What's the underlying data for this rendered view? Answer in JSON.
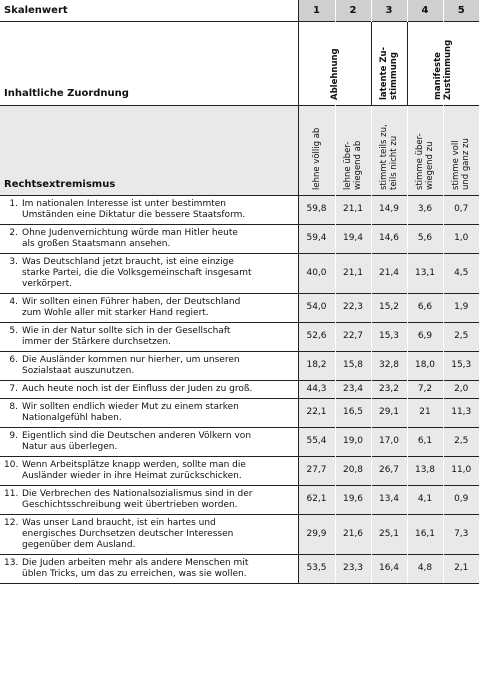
{
  "header": {
    "skalenwert_label": "Skalenwert",
    "scale": [
      "1",
      "2",
      "3",
      "4",
      "5"
    ],
    "inhaltliche_label": "Inhaltliche Zuordnung",
    "groups": [
      {
        "lines": [
          "Ablehnung"
        ]
      },
      {
        "lines": [
          "latente Zu-",
          "stimmung"
        ]
      },
      {
        "lines": [
          "manifeste",
          "Zustimmung"
        ]
      }
    ],
    "section_label": "Rechtsextremismus",
    "columns": [
      {
        "lines": [
          "lehne völlig ab"
        ]
      },
      {
        "lines": [
          "lehne über-",
          "wiegend ab"
        ]
      },
      {
        "lines": [
          "stimmt teils zu,",
          "teils nicht zu"
        ]
      },
      {
        "lines": [
          "stimme über-",
          "wiegend zu"
        ]
      },
      {
        "lines": [
          "stimme voll",
          "und ganz zu"
        ]
      }
    ]
  },
  "rows": [
    {
      "num": "1.",
      "lines": [
        "Im nationalen Interesse ist unter bestimmten",
        "Umständen eine Diktatur die bessere Staatsform."
      ],
      "values": [
        "59,8",
        "21,1",
        "14,9",
        "3,6",
        "0,7"
      ]
    },
    {
      "num": "2.",
      "lines": [
        "Ohne Judenvernichtung würde man Hitler heute",
        "als großen Staatsmann ansehen."
      ],
      "values": [
        "59,4",
        "19,4",
        "14,6",
        "5,6",
        "1,0"
      ]
    },
    {
      "num": "3.",
      "lines": [
        "Was Deutschland jetzt braucht, ist eine einzige",
        "starke Partei, die die Volksgemeinschaft insgesamt",
        "verkörpert."
      ],
      "values": [
        "40,0",
        "21,1",
        "21,4",
        "13,1",
        "4,5"
      ]
    },
    {
      "num": "4.",
      "lines": [
        "Wir sollten einen Führer haben, der Deutschland",
        "zum Wohle aller mit starker Hand regiert."
      ],
      "values": [
        "54,0",
        "22,3",
        "15,2",
        "6,6",
        "1,9"
      ]
    },
    {
      "num": "5.",
      "lines": [
        "Wie in der Natur sollte sich in der Gesellschaft",
        "immer der Stärkere durchsetzen."
      ],
      "values": [
        "52,6",
        "22,7",
        "15,3",
        "6,9",
        "2,5"
      ]
    },
    {
      "num": "6.",
      "lines": [
        "Die Ausländer kommen nur hierher, um unseren",
        "Sozialstaat auszunutzen."
      ],
      "values": [
        "18,2",
        "15,8",
        "32,8",
        "18,0",
        "15,3"
      ]
    },
    {
      "num": "7.",
      "lines": [
        "Auch heute noch ist der Einfluss der Juden zu groß."
      ],
      "values": [
        "44,3",
        "23,4",
        "23,2",
        "7,2",
        "2,0"
      ]
    },
    {
      "num": "8.",
      "lines": [
        "Wir sollten endlich wieder Mut zu einem starken",
        "Nationalgefühl haben."
      ],
      "values": [
        "22,1",
        "16,5",
        "29,1",
        "21",
        "11,3"
      ]
    },
    {
      "num": "9.",
      "lines": [
        "Eigentlich sind die Deutschen anderen Völkern von",
        "Natur aus überlegen."
      ],
      "values": [
        "55,4",
        "19,0",
        "17,0",
        "6,1",
        "2,5"
      ]
    },
    {
      "num": "10.",
      "lines": [
        "Wenn Arbeitsplätze knapp werden, sollte man die",
        "Ausländer wieder in ihre Heimat zurückschicken."
      ],
      "values": [
        "27,7",
        "20,8",
        "26,7",
        "13,8",
        "11,0"
      ]
    },
    {
      "num": "11.",
      "lines": [
        "Die Verbrechen des Nationalsozialismus sind in der",
        "Geschichtsschreibung weit übertrieben worden."
      ],
      "values": [
        "62,1",
        "19,6",
        "13,4",
        "4,1",
        "0,9"
      ]
    },
    {
      "num": "12.",
      "lines": [
        "Was unser Land braucht, ist ein hartes und",
        "energisches Durchsetzen deutscher Interessen",
        "gegenüber dem Ausland."
      ],
      "values": [
        "29,9",
        "21,6",
        "25,1",
        "16,1",
        "7,3"
      ]
    },
    {
      "num": "13.",
      "lines": [
        "Die Juden arbeiten mehr als andere Menschen mit",
        "üblen Tricks, um das zu erreichen, was sie wollen."
      ],
      "values": [
        "53,5",
        "23,3",
        "16,4",
        "4,8",
        "2,1"
      ]
    }
  ]
}
